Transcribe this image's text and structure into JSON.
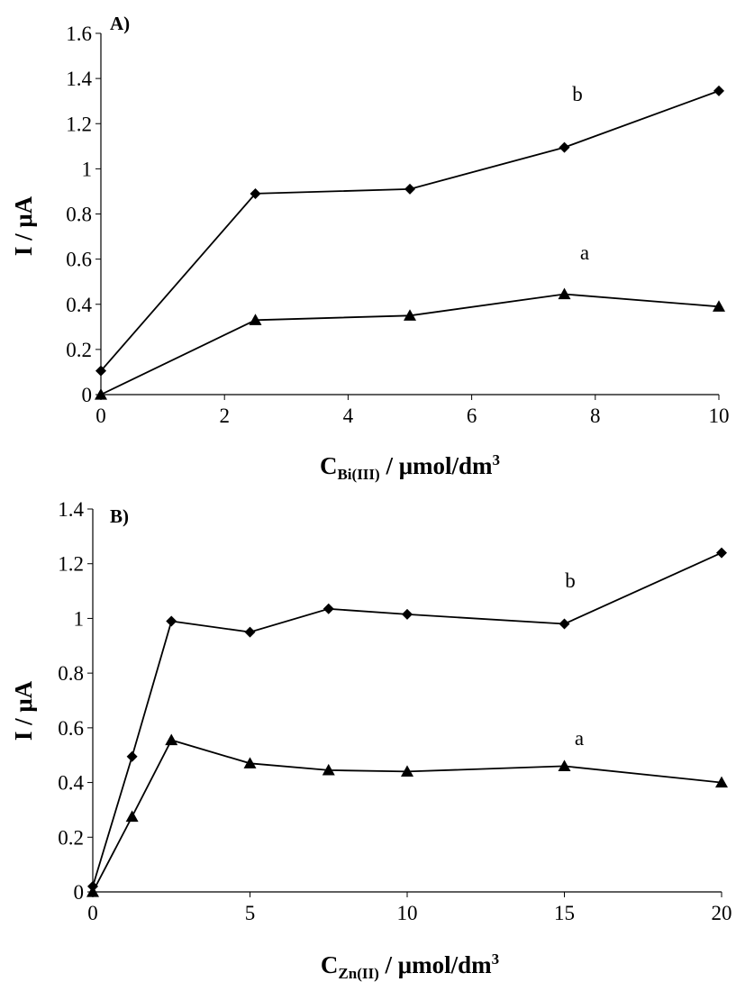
{
  "chart_data": [
    {
      "type": "line",
      "panel_label": "A)",
      "ylabel": "I / μA",
      "xlabel": {
        "main": "C",
        "sub": "Bi(III)",
        "rest": " / μmol/dm",
        "sup": "3"
      },
      "xlim": [
        0,
        10
      ],
      "ylim": [
        0,
        1.6
      ],
      "xticks": [
        0,
        2,
        4,
        6,
        8,
        10
      ],
      "yticks": [
        0,
        0.2,
        0.4,
        0.6,
        0.8,
        1,
        1.2,
        1.4,
        1.6
      ],
      "grid": false,
      "legend": "none",
      "series": [
        {
          "label": "a",
          "marker": "triangle",
          "x": [
            0,
            2.5,
            5,
            7.5,
            10
          ],
          "y": [
            0.0,
            0.33,
            0.35,
            0.445,
            0.39
          ]
        },
        {
          "label": "b",
          "marker": "diamond",
          "x": [
            0,
            2.5,
            5,
            7.5,
            10
          ],
          "y": [
            0.105,
            0.89,
            0.91,
            1.095,
            1.345
          ]
        }
      ]
    },
    {
      "type": "line",
      "panel_label": "B)",
      "ylabel": "I / μA",
      "xlabel": {
        "main": "C",
        "sub": "Zn(II)",
        "rest": " / μmol/dm",
        "sup": "3"
      },
      "xlim": [
        0,
        20
      ],
      "ylim": [
        0,
        1.4
      ],
      "xticks": [
        0,
        5,
        10,
        15,
        20
      ],
      "yticks": [
        0,
        0.2,
        0.4,
        0.6,
        0.8,
        1,
        1.2,
        1.4
      ],
      "grid": false,
      "legend": "none",
      "series": [
        {
          "label": "a",
          "marker": "triangle",
          "x": [
            0,
            1.25,
            2.5,
            5,
            7.5,
            10,
            15,
            20
          ],
          "y": [
            0.0,
            0.275,
            0.555,
            0.47,
            0.445,
            0.44,
            0.46,
            0.4
          ]
        },
        {
          "label": "b",
          "marker": "diamond",
          "x": [
            0,
            1.25,
            2.5,
            5,
            7.5,
            10,
            15,
            20
          ],
          "y": [
            0.02,
            0.495,
            0.99,
            0.95,
            1.035,
            1.015,
            0.98,
            1.24
          ]
        }
      ]
    }
  ]
}
